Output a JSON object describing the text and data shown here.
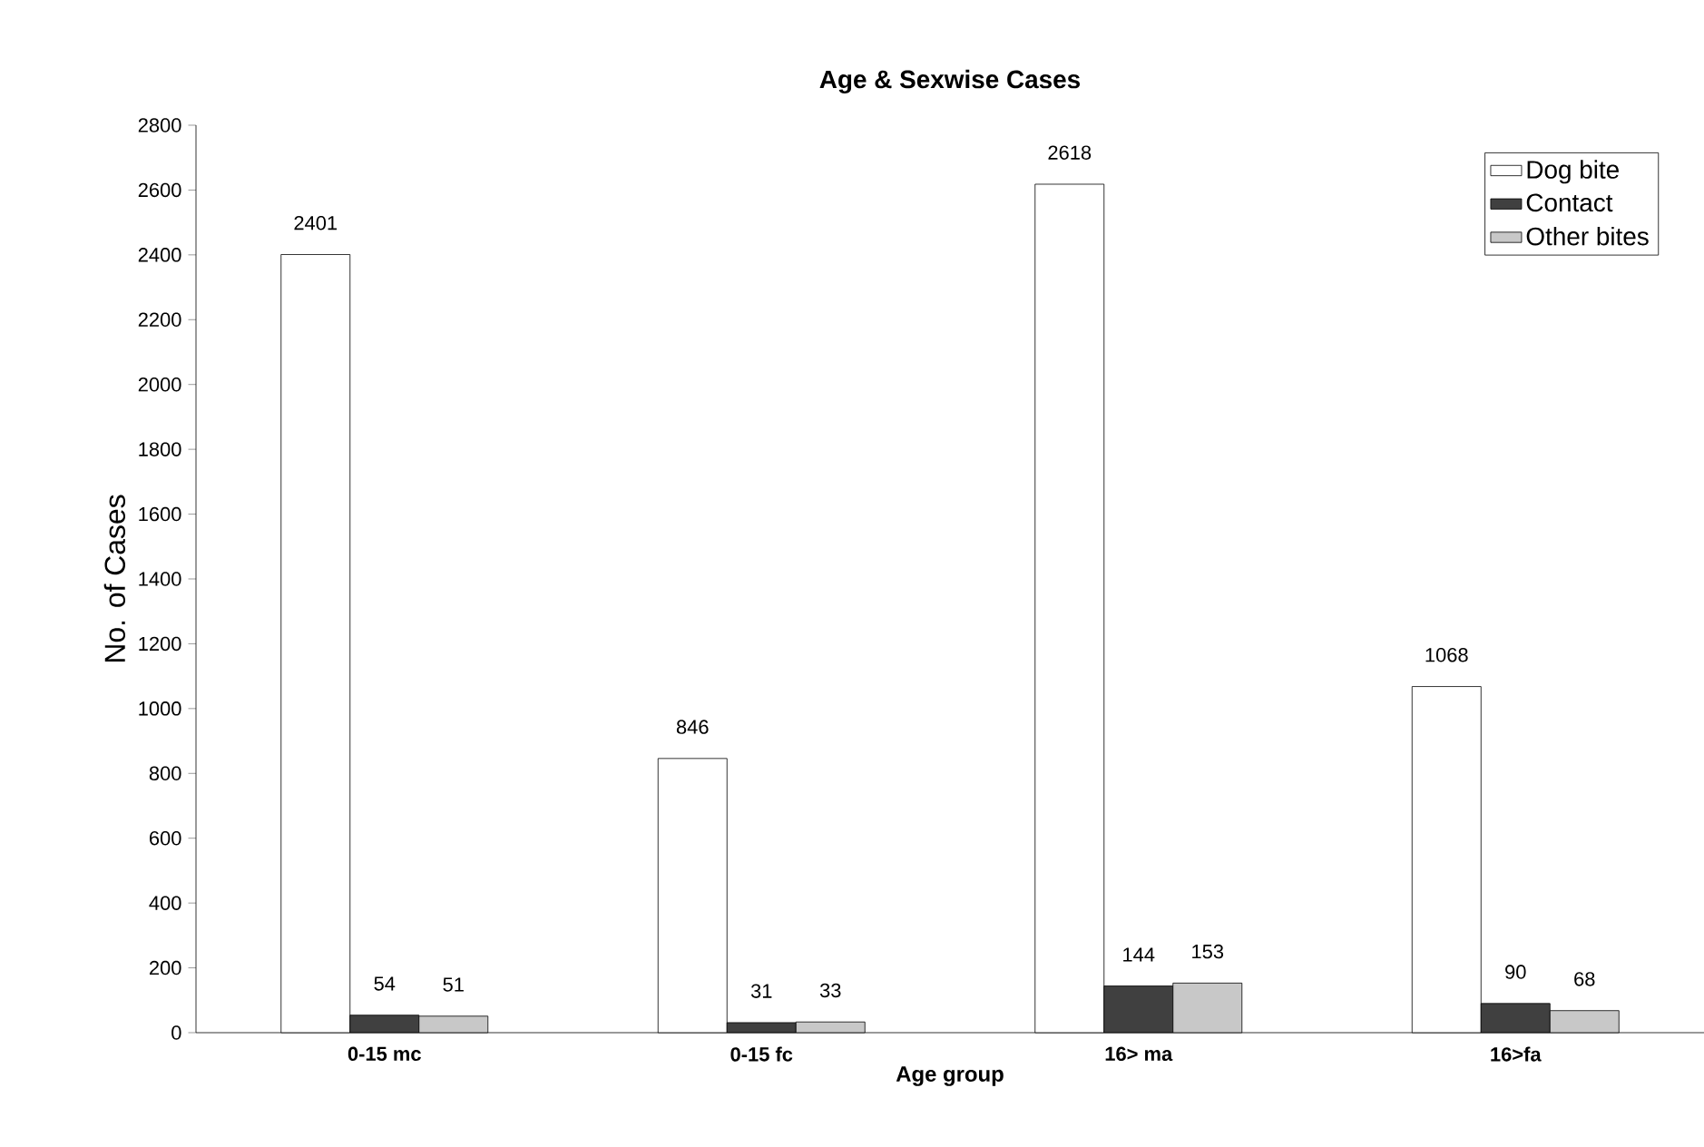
{
  "chart_data": {
    "type": "bar",
    "title": "Age & Sexwise Cases",
    "xlabel": "Age group",
    "ylabel": "No. of Cases",
    "categories": [
      "0-15 mc",
      "0-15 fc",
      "16> ma",
      "16>fa"
    ],
    "series": [
      {
        "name": "Dog bite",
        "color": "#ffffff",
        "values": [
          2401,
          846,
          2618,
          1068
        ]
      },
      {
        "name": "Contact",
        "color": "#404040",
        "values": [
          54,
          31,
          144,
          90
        ]
      },
      {
        "name": "Other bites",
        "color": "#c8c8c8",
        "values": [
          51,
          33,
          153,
          68
        ]
      }
    ],
    "ylim": [
      0,
      2800
    ],
    "yticks": [
      0,
      200,
      400,
      600,
      800,
      1000,
      1200,
      1400,
      1600,
      1800,
      2000,
      2200,
      2400,
      2600,
      2800
    ],
    "data_labels": true,
    "legend": "top right",
    "grid": false
  }
}
